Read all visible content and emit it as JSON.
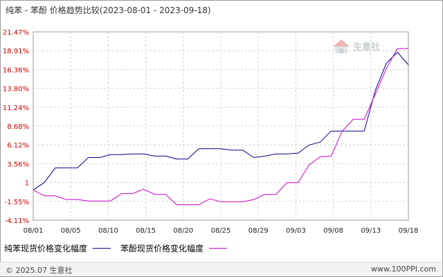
{
  "title": "纯苯 - 苯酚 价格趋势比较(2023-08-01 - 2023-09-18)",
  "chart_data": {
    "type": "line",
    "title": "纯苯 - 苯酚 价格趋势比较(2023-08-01 - 2023-09-18)",
    "xlabel": "",
    "ylabel": "",
    "y_ticks": [
      "21.47%",
      "18.91%",
      "16.36%",
      "13.80%",
      "11.24%",
      "8.68%",
      "6.12%",
      "3.56%",
      "1",
      "-1.55%",
      "-4.11%"
    ],
    "ylim": [
      -4.11,
      21.47
    ],
    "x_ticks": [
      "08/01",
      "08/05",
      "08/10",
      "08/15",
      "08/20",
      "08/25",
      "08/29",
      "09/03",
      "09/08",
      "09/13",
      "09/18"
    ],
    "x": [
      "08/01",
      "08/02",
      "08/03",
      "08/04",
      "08/07",
      "08/08",
      "08/09",
      "08/10",
      "08/11",
      "08/14",
      "08/15",
      "08/16",
      "08/17",
      "08/18",
      "08/21",
      "08/22",
      "08/23",
      "08/24",
      "08/25",
      "08/28",
      "08/29",
      "08/30",
      "08/31",
      "09/01",
      "09/04",
      "09/05",
      "09/06",
      "09/07",
      "09/08",
      "09/11",
      "09/12",
      "09/13",
      "09/14",
      "09/15",
      "09/18"
    ],
    "series": [
      {
        "name": "纯苯现货价格变化幅度",
        "color": "#00008b",
        "values": [
          0,
          1.0,
          3.0,
          3.0,
          3.0,
          4.4,
          4.4,
          4.8,
          4.8,
          4.9,
          4.9,
          4.6,
          4.6,
          4.2,
          4.2,
          5.6,
          5.6,
          5.6,
          5.4,
          5.4,
          4.4,
          4.6,
          4.9,
          4.9,
          5.0,
          6.1,
          6.5,
          8.0,
          8.0,
          8.0,
          8.0,
          13.5,
          17.2,
          18.7,
          17.0
        ]
      },
      {
        "name": "苯酚现货价格变化幅度",
        "color": "#cc00cc",
        "values": [
          0,
          -0.8,
          -0.8,
          -1.3,
          -1.3,
          -1.5,
          -1.5,
          -1.5,
          -0.5,
          -0.5,
          0.1,
          -0.6,
          -0.6,
          -2.0,
          -2.0,
          -2.0,
          -1.2,
          -1.6,
          -1.6,
          -1.6,
          -1.3,
          -0.6,
          -0.6,
          1.0,
          1.0,
          3.4,
          4.5,
          4.6,
          8.0,
          9.6,
          9.6,
          13.0,
          16.5,
          19.2,
          19.2
        ]
      }
    ],
    "grid": true,
    "legend": "bottom-left"
  },
  "legend": {
    "benzene_label": "纯苯现货价格变化幅度",
    "phenol_label": "苯酚现货价格变化幅度"
  },
  "footer": {
    "copyright": "© 2025.07 生意社",
    "site": "www.100PPI.com"
  },
  "watermark": {
    "text": "生意社"
  },
  "colors": {
    "benzene": "#00008b",
    "phenol": "#cc00cc",
    "tick_y": "#cc0000",
    "grid": "#d0d0d0"
  }
}
